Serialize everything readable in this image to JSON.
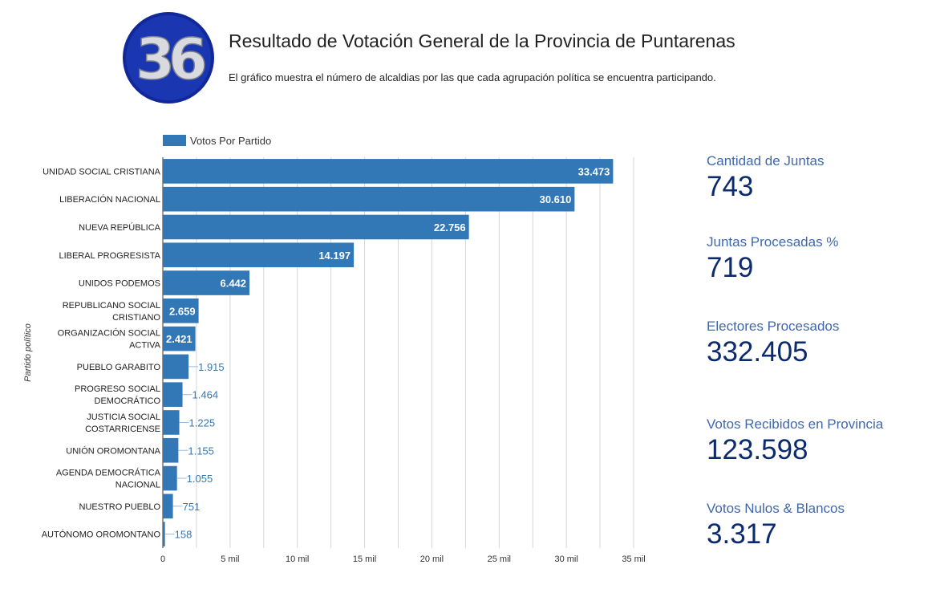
{
  "header": {
    "logo_text": "36",
    "title": "Resultado de Votación General de la Provincia de Puntarenas",
    "subtitle": "El gráfico muestra el número de alcaldias por las que cada agrupación política se encuentra participando."
  },
  "chart_data": {
    "type": "bar",
    "orientation": "horizontal",
    "ylabel": "Partido político",
    "xlabel": "",
    "xlim": [
      0,
      35000
    ],
    "xticks": [
      0,
      5000,
      10000,
      15000,
      20000,
      25000,
      30000,
      35000
    ],
    "xtick_labels": [
      "0",
      "5 mil",
      "10 mil",
      "15 mil",
      "20 mil",
      "25 mil",
      "30 mil",
      "35 mil"
    ],
    "grid": true,
    "legend_position": "top-left",
    "series": [
      {
        "name": "Votos Por Partido",
        "color": "#3277b6",
        "values": [
          33473,
          30610,
          22756,
          14197,
          6442,
          2659,
          2421,
          1915,
          1464,
          1225,
          1155,
          1055,
          751,
          158
        ],
        "labels": [
          "33.473",
          "30.610",
          "22.756",
          "14.197",
          "6.442",
          "2.659",
          "2.421",
          "1.915",
          "1.464",
          "1.225",
          "1.155",
          "1.055",
          "751",
          "158"
        ]
      }
    ],
    "categories": [
      [
        "UNIDAD SOCIAL CRISTIANA"
      ],
      [
        "LIBERACIÓN NACIONAL"
      ],
      [
        "NUEVA REPÚBLICA"
      ],
      [
        "LIBERAL PROGRESISTA"
      ],
      [
        "UNIDOS PODEMOS"
      ],
      [
        "REPUBLICANO SOCIAL",
        "CRISTIANO"
      ],
      [
        "ORGANIZACIÓN SOCIAL",
        "ACTIVA"
      ],
      [
        "PUEBLO GARABITO"
      ],
      [
        "PROGRESO SOCIAL",
        "DEMOCRÁTICO"
      ],
      [
        "JUSTICIA SOCIAL",
        "COSTARRICENSE"
      ],
      [
        "UNIÓN OROMONTANA"
      ],
      [
        "AGENDA DEMOCRÁTICA",
        "NACIONAL"
      ],
      [
        "NUESTRO PUEBLO"
      ],
      [
        "AUTÓNOMO OROMONTANO"
      ]
    ]
  },
  "stats": [
    {
      "label": "Cantidad de Juntas",
      "value": "743"
    },
    {
      "label": "Juntas Procesadas %",
      "value": "719"
    },
    {
      "label": "Electores Procesados",
      "value": "332.405"
    },
    {
      "label": "Votos Recibidos en Provincia",
      "value": "123.598"
    },
    {
      "label": "Votos Nulos & Blancos",
      "value": "3.317"
    }
  ],
  "colors": {
    "bar": "#3277b6",
    "stat_label": "#3f68ad",
    "stat_value": "#0c2a6e",
    "logo_ring": "#10289a"
  }
}
